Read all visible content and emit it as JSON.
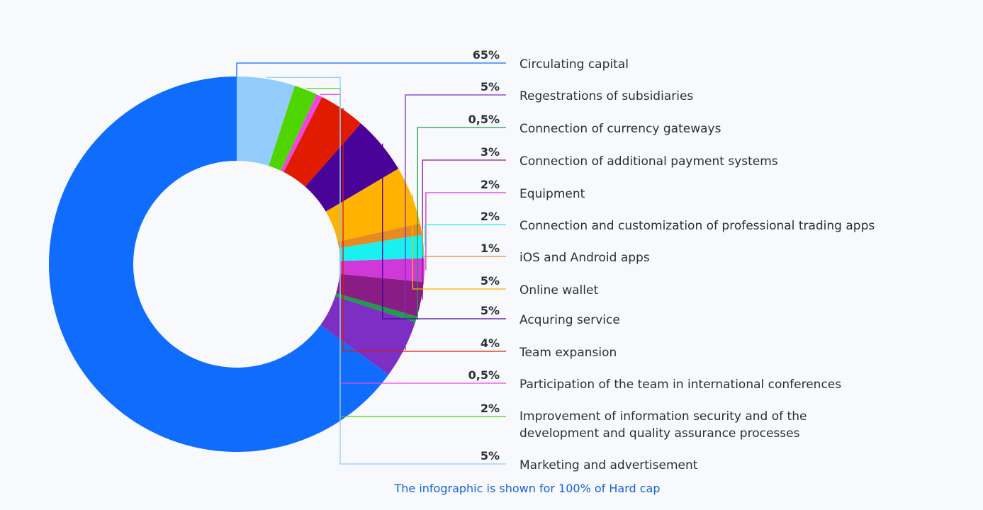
{
  "chart_data": {
    "type": "pie",
    "donut": true,
    "series": [
      {
        "label": "Circulating capital",
        "value": 65,
        "pct_label": "65%",
        "color": "#0f6cfd"
      },
      {
        "label": "Regestrations of subsidiaries",
        "value": 5,
        "pct_label": "5%",
        "color": "#7c2fc2"
      },
      {
        "label": "Connection of currency gateways",
        "value": 0.5,
        "pct_label": "0,5%",
        "color": "#1e9d4c"
      },
      {
        "label": "Connection of additional payment systems",
        "value": 3,
        "pct_label": "3%",
        "color": "#8a1c86"
      },
      {
        "label": "Equipment",
        "value": 2,
        "pct_label": "2%",
        "color": "#d038d8"
      },
      {
        "label": "Connection and customization of professional trading apps",
        "value": 2,
        "pct_label": "2%",
        "color": "#19f1f0"
      },
      {
        "label": "iOS and Android apps",
        "value": 1,
        "pct_label": "1%",
        "color": "#e88a22"
      },
      {
        "label": "Online wallet",
        "value": 5,
        "pct_label": "5%",
        "color": "#ffb300"
      },
      {
        "label": "Acquring service",
        "value": 5,
        "pct_label": "5%",
        "color": "#4a0399"
      },
      {
        "label": "Team expansion",
        "value": 4,
        "pct_label": "4%",
        "color": "#e01b00"
      },
      {
        "label": "Participation of the team in international conferences",
        "value": 0.5,
        "pct_label": "0,5%",
        "color": "#ee46e6"
      },
      {
        "label": "Improvement of information security and of the\ndevelopment and quality assurance processes",
        "value": 2,
        "pct_label": "2%",
        "color": "#4fd600"
      },
      {
        "label": "Marketing and advertisement",
        "value": 5,
        "pct_label": "5%",
        "color": "#93cbfa"
      }
    ],
    "footnote": "The infographic is shown for 100% of Hard cap",
    "footnote_color": "#1463d8",
    "background": "#f7f9fc"
  }
}
